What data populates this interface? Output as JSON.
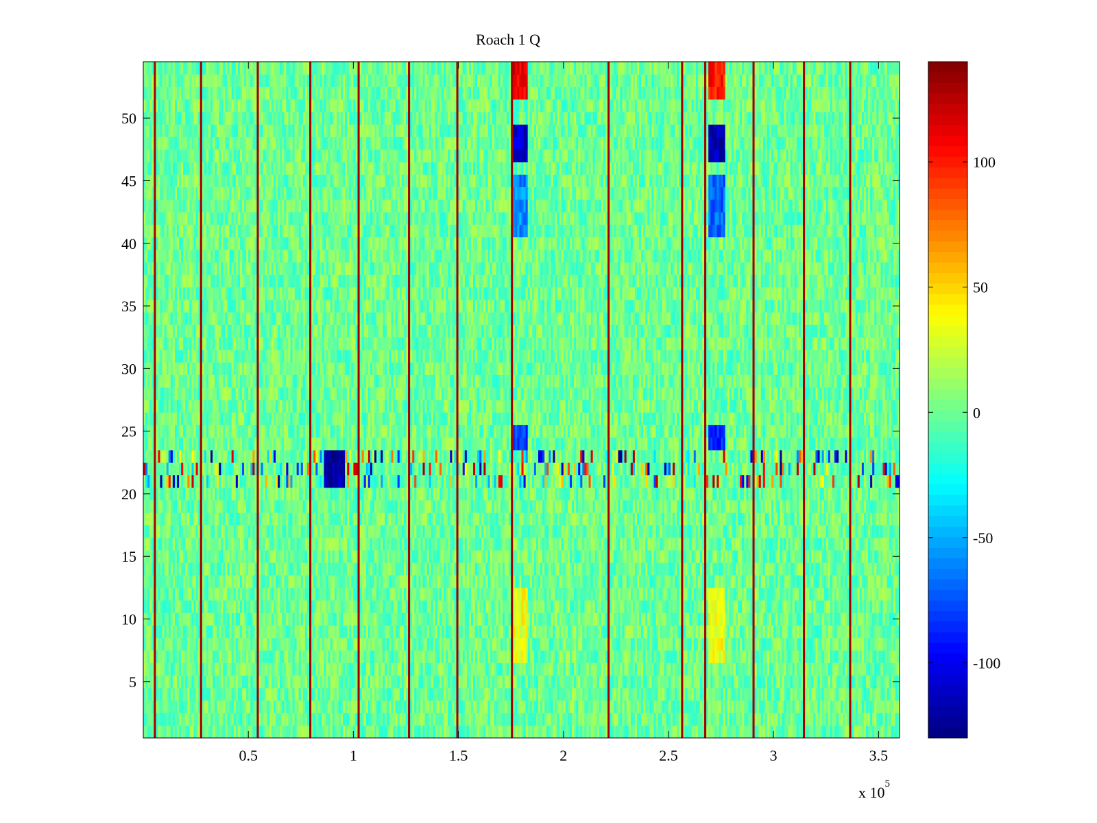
{
  "chart_data": {
    "type": "heatmap",
    "title": "Roach 1 Q",
    "xlabel": "",
    "ylabel": "",
    "x_exponent_label": "x 10",
    "x_exponent_power": "5",
    "xlim": [
      0,
      3.6
    ],
    "ylim": [
      0.5,
      54.5
    ],
    "n_rows": 54,
    "xticks": [
      0.5,
      1,
      1.5,
      2,
      2.5,
      3,
      3.5
    ],
    "xtick_labels": [
      "0.5",
      "1",
      "1.5",
      "2",
      "2.5",
      "3",
      "3.5"
    ],
    "yticks": [
      5,
      10,
      15,
      20,
      25,
      30,
      35,
      40,
      45,
      50
    ],
    "ytick_labels": [
      "5",
      "10",
      "15",
      "20",
      "25",
      "30",
      "35",
      "40",
      "45",
      "50"
    ],
    "colormap": "jet",
    "color_limits": [
      -130,
      140
    ],
    "colorbar_ticks": [
      100,
      50,
      0,
      -50,
      -100
    ],
    "colorbar_tick_labels": [
      "100",
      "50",
      "0",
      "-50",
      "-100"
    ],
    "background_value": 0,
    "background_variation": 20,
    "vertical_line_x": [
      0.05,
      0.27,
      0.54,
      0.79,
      1.02,
      1.26,
      1.49,
      1.75,
      2.21,
      2.56,
      2.67,
      2.9,
      3.14,
      3.36
    ],
    "vertical_line_value": 130,
    "features": [
      {
        "x": [
          1.75,
          1.83
        ],
        "rows": [
          52,
          54
        ],
        "value": 110
      },
      {
        "x": [
          1.75,
          1.83
        ],
        "rows": [
          47,
          49
        ],
        "value": -110
      },
      {
        "x": [
          1.75,
          1.83
        ],
        "rows": [
          41,
          45
        ],
        "value": -60
      },
      {
        "x": [
          1.75,
          1.83
        ],
        "rows": [
          24,
          25
        ],
        "value": -80
      },
      {
        "x": [
          1.75,
          1.83
        ],
        "rows": [
          7,
          12
        ],
        "value": 35
      },
      {
        "x": [
          2.69,
          2.77
        ],
        "rows": [
          52,
          54
        ],
        "value": 100
      },
      {
        "x": [
          2.69,
          2.77
        ],
        "rows": [
          47,
          49
        ],
        "value": -115
      },
      {
        "x": [
          2.69,
          2.77
        ],
        "rows": [
          41,
          45
        ],
        "value": -70
      },
      {
        "x": [
          2.69,
          2.77
        ],
        "rows": [
          24,
          25
        ],
        "value": -85
      },
      {
        "x": [
          2.69,
          2.77
        ],
        "rows": [
          7,
          12
        ],
        "value": 35
      },
      {
        "x": [
          0.86,
          0.96
        ],
        "rows": [
          21,
          23
        ],
        "value": -120
      }
    ],
    "noisy_rows": [
      21,
      22,
      23
    ]
  }
}
